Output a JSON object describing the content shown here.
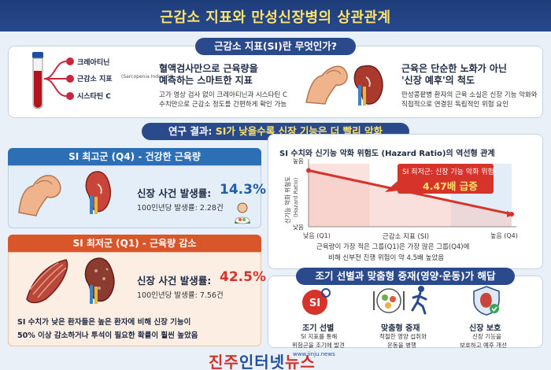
{
  "header": {
    "title": "근감소 지표와 만성신장병의 상관관계"
  },
  "section1": {
    "pill": "근감소 지표(SI)란 무엇인가?",
    "markers": [
      "크레아티닌",
      "근감소 지표",
      "시스타틴 C"
    ],
    "marker_sub": "(Sarcopenia Index, SI)",
    "left_title_1": "혈액검사만으로 근육량을",
    "left_title_2": "예측하는 스마트한 지표",
    "left_desc_1": "고가 영상 검사 없이 크레아티닌과 시스타틴 C",
    "left_desc_2": "수치만으로 근감소 정도를 간편하게 확인 가능",
    "right_title_1": "근육은 단순한 노화가 아닌",
    "right_title_2": "'신장 예후'의 척도",
    "right_desc_1": "만성콩팥병 환자의 근육 소실은 신장 기능 악화와",
    "right_desc_2": "직접적으로 연결된 독립적인 위험 요인"
  },
  "section2": {
    "pill_prefix": "연구 결과: ",
    "pill_highlight": "SI가 낮을수록 신장 기능은 더 빨리 악화"
  },
  "q4": {
    "header": "SI 최고군 (Q4) - 건강한 근육량",
    "rate_label": "신장 사건 발생률:",
    "rate_value": "14.3%",
    "per100": "100인년당 발생률: 2.28건"
  },
  "q1": {
    "header": "SI 최저군 (Q1) - 근육량 감소",
    "rate_label": "신장 사건 발생률:",
    "rate_value": "42.5%",
    "per100": "100인년당 발생률: 7.56건",
    "note_1": "SI 수치가 낮은 환자들은 높은 환자에 비해 신장 기능이",
    "note_2": "50% 이상 감소하거나 투석이 필요한 확률이 훨씬 높았음"
  },
  "chart": {
    "title": "SI 수치와 신기능 악화 위험도 (Hazard Ratio)의 역선형 관계",
    "ylabel": "신기능 악화 위험도",
    "ylabel_en": "(Hazard Ratio)",
    "y_high": "높음",
    "y_low": "낮음",
    "x_low": "낮음 (Q1)",
    "x_mid": "근감소 지표 (SI)",
    "x_high": "높음 (Q4)",
    "callout_1": "SI 최저군: 신장 기능 악화 위험",
    "callout_2": "4.47배 급증",
    "caption_1": "근육량이 가장 적은 그룹(Q1)은 가장 많은 그룹(Q4)에",
    "caption_2": "비해 신부전 진행 위험이 약 4.5배 높았음"
  },
  "chart_data": {
    "type": "line",
    "title": "SI 수치와 신기능 악화 위험도 (Hazard Ratio)의 역선형 관계",
    "xlabel": "근감소 지표 (SI)",
    "ylabel": "신기능 악화 위험도 (Hazard Ratio)",
    "x": [
      "낮음 (Q1)",
      "높음 (Q4)"
    ],
    "series": [
      {
        "values": [
          4.47,
          1.0
        ]
      }
    ],
    "grid": false,
    "colors": {
      "line": "#d6332b",
      "area": "#f6c6c0"
    }
  },
  "section3": {
    "pill": "조기 선별과 맞춤형 중재(영양·운동)가 해답",
    "items": [
      {
        "title": "조기 선별",
        "desc_1": "SI 지표를 통해",
        "desc_2": "위험군을 조기에 발견",
        "icon": "SI"
      },
      {
        "title": "맞춤형 중재",
        "desc_1": "적절한 영양 섭취와",
        "desc_2": "운동을 병행",
        "icon": "plate-icon"
      },
      {
        "title": "신장 보호",
        "desc_1": "신장 기능을",
        "desc_2": "보호하고 예후 개선",
        "icon": "kidney-shield-icon"
      }
    ]
  },
  "watermark": {
    "part1": "진주",
    "part2": "인터넷",
    "part3": "뉴스",
    "url": "www.jinju.news"
  },
  "colors": {
    "navy": "#1e3c7a",
    "yellow": "#ffe36a",
    "blue": "#2d6fb4",
    "orange": "#d9552a",
    "red": "#d6332b"
  }
}
